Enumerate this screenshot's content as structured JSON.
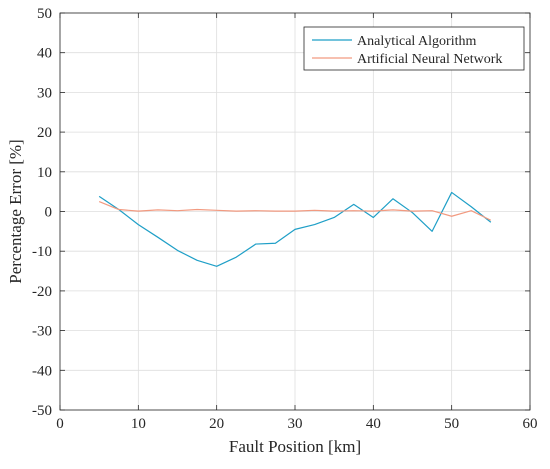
{
  "chart_data": {
    "type": "line",
    "xlabel": "Fault Position [km]",
    "ylabel": "Percentage Error [%]",
    "xlim": [
      0,
      60
    ],
    "ylim": [
      -50,
      50
    ],
    "xticks": [
      0,
      10,
      20,
      30,
      40,
      50,
      60
    ],
    "yticks": [
      -50,
      -40,
      -30,
      -20,
      -10,
      0,
      10,
      20,
      30,
      40,
      50
    ],
    "grid": true,
    "legend_position": "top-right",
    "series": [
      {
        "name": "Analytical Algorithm",
        "color": "#1f9fc7",
        "x": [
          5,
          7.5,
          10,
          12.5,
          15,
          17.5,
          20,
          22.5,
          25,
          27.5,
          30,
          32.5,
          35,
          37.5,
          40,
          42.5,
          45,
          47.5,
          50,
          52.5,
          55
        ],
        "y": [
          3.8,
          0.5,
          -3.3,
          -6.5,
          -9.8,
          -12.3,
          -13.8,
          -11.5,
          -8.2,
          -8.0,
          -4.5,
          -3.3,
          -1.5,
          1.8,
          -1.5,
          3.2,
          -0.3,
          -5.0,
          4.8,
          1.2,
          -2.7
        ]
      },
      {
        "name": "Artificial Neural Network",
        "color": "#f29a80",
        "x": [
          5,
          7.5,
          10,
          12.5,
          15,
          17.5,
          20,
          22.5,
          25,
          27.5,
          30,
          32.5,
          35,
          37.5,
          40,
          42.5,
          45,
          47.5,
          50,
          52.5,
          55
        ],
        "y": [
          2.5,
          0.5,
          0.1,
          0.4,
          0.2,
          0.5,
          0.3,
          0.1,
          0.2,
          0.1,
          0.1,
          0.3,
          0.1,
          0.2,
          0.1,
          0.4,
          0.1,
          0.2,
          -1.2,
          0.2,
          -2.2
        ]
      }
    ]
  }
}
